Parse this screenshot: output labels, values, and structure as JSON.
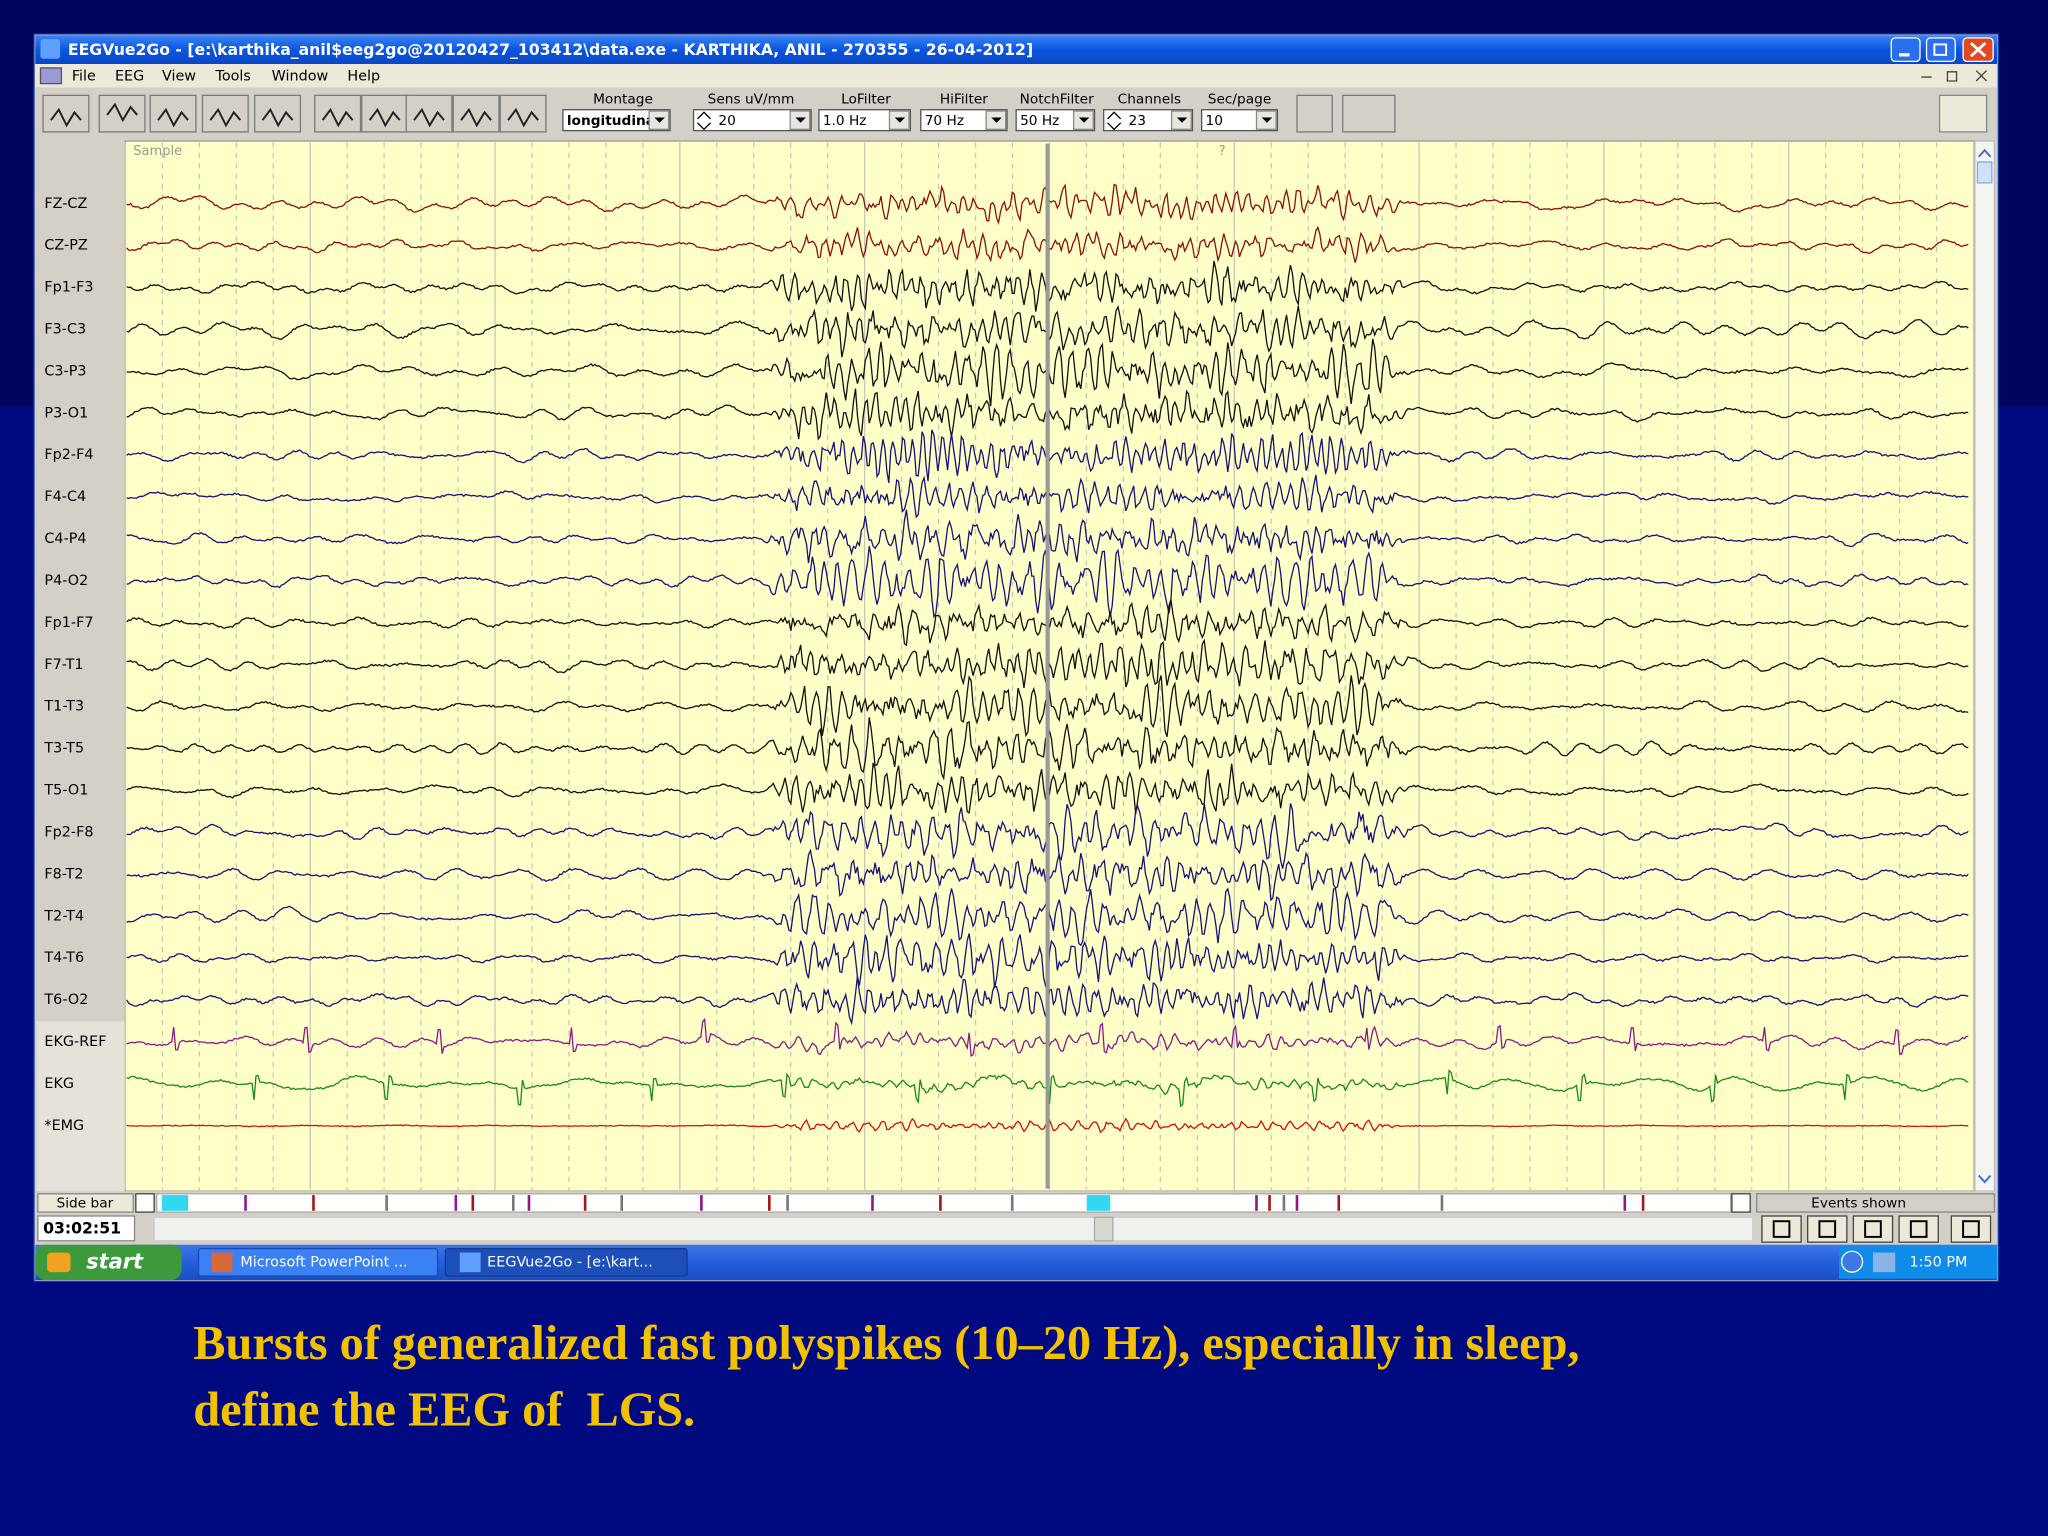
{
  "window": {
    "title": "EEGVue2Go - [e:\\karthika_anil$eeg2go@20120427_103412\\data.exe - KARTHIKA, ANIL - 270355 - 26-04-2012]",
    "menu": [
      "File",
      "EEG",
      "View",
      "Tools",
      "Window",
      "Help"
    ]
  },
  "toolbar": {
    "fields": [
      {
        "label": "Montage",
        "value": "longitudina"
      },
      {
        "label": "Sens uV/mm",
        "value": "20"
      },
      {
        "label": "LoFilter",
        "value": "1.0 Hz"
      },
      {
        "label": "HiFilter",
        "value": "70 Hz"
      },
      {
        "label": "NotchFilter",
        "value": "50 Hz"
      },
      {
        "label": "Channels",
        "value": "23"
      },
      {
        "label": "Sec/page",
        "value": "10"
      }
    ]
  },
  "eeg": {
    "sample_label": "Sample",
    "marker": "?",
    "channels": [
      "FZ-CZ",
      "CZ-PZ",
      "Fp1-F3",
      "F3-C3",
      "C3-P3",
      "P3-O1",
      "Fp2-F4",
      "F4-C4",
      "C4-P4",
      "P4-O2",
      "Fp1-F7",
      "F7-T1",
      "T1-T3",
      "T3-T5",
      "T5-O1",
      "Fp2-F8",
      "F8-T2",
      "T2-T4",
      "T4-T6",
      "T6-O2",
      "EKG-REF",
      "EKG",
      "*EMG"
    ]
  },
  "status": {
    "side_bar": "Side bar",
    "time": "03:02:51",
    "events": "Events shown"
  },
  "taskbar": {
    "start": "start",
    "items": [
      "Microsoft PowerPoint ...",
      "EEGVue2Go - [e:\\kart..."
    ],
    "clock": "1:50 PM"
  },
  "caption": [
    "Bursts of generalized fast polyspikes (10–20 Hz), especially in sleep,",
    "define the EEG of  LGS."
  ]
}
